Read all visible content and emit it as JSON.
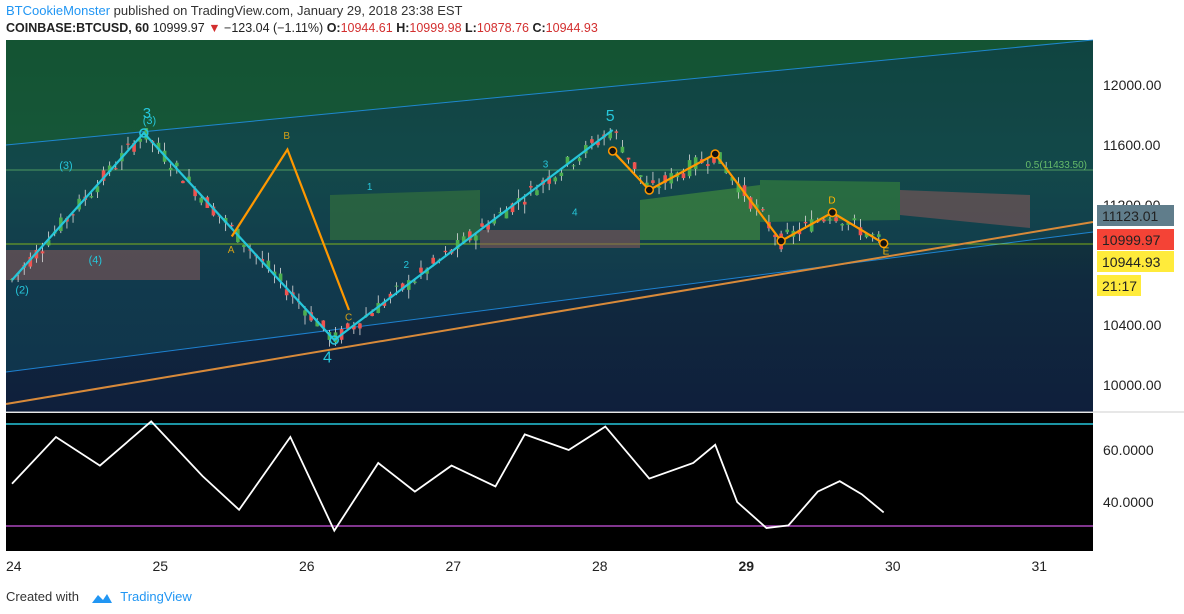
{
  "header": {
    "author": "BTCookieMonster",
    "published_text": "published on TradingView.com, January 29, 2018 23:38 EST",
    "symbol": "COINBASE:BTCUSD, 60",
    "last": "10999.97",
    "change": "−123.04 (−1.11%)",
    "o_label": "O:",
    "o_value": "10944.61",
    "h_label": "H:",
    "h_value": "10999.98",
    "l_label": "L:",
    "l_value": "10878.76",
    "c_label": "C:",
    "c_value": "10944.93"
  },
  "footer": {
    "created_with": "Created with",
    "brand": "TradingView"
  },
  "colors": {
    "up": "#4caf50",
    "down": "#ef5350",
    "wave": "#26c6da",
    "harmonic": "#ff9800",
    "trend": "#d88a3a",
    "rsi": "#ffffff"
  },
  "price_axis": {
    "ticks": [
      "12000.00",
      "11600.00",
      "11200.00",
      "10400.00",
      "10000.00"
    ],
    "badges": [
      {
        "value": "11123.01",
        "bg": "#607d8b",
        "fg": "#ffffff"
      },
      {
        "value": "10999.97",
        "bg": "#f44336",
        "fg": "#ffffff"
      },
      {
        "value": "10944.93",
        "bg": "#ffeb3b",
        "fg": "#000000"
      },
      {
        "value": "21:17",
        "bg": "#ffeb3b",
        "fg": "#000000"
      }
    ],
    "fib_label": "0.5(11433.50)"
  },
  "rsi_axis": {
    "ticks": [
      "60.0000",
      "40.0000"
    ]
  },
  "x_axis": {
    "ticks": [
      "24",
      "25",
      "26",
      "27",
      "28",
      "29",
      "30",
      "31"
    ]
  },
  "wave_labels": [
    "3",
    "(3)",
    "(3)",
    "(2)",
    "(4)",
    "4",
    "5",
    "1",
    "2",
    "3",
    "4",
    "A",
    "B",
    "C",
    "D",
    "E"
  ],
  "chart_data": [
    {
      "type": "line",
      "title": "COINBASE:BTCUSD, 60",
      "x_ticks": [
        "24",
        "25",
        "26",
        "27",
        "28",
        "29",
        "30",
        "31"
      ],
      "ylim": [
        9800,
        12250
      ],
      "y_ticks": [
        10000,
        10400,
        11200,
        11600,
        12000
      ],
      "series": [
        {
          "name": "",
          "x": [
            24.0,
            24.9,
            26.2,
            28.1,
            28.35,
            28.8,
            29.25,
            29.6,
            29.95
          ],
          "values": [
            10700,
            11680,
            10300,
            11700,
            11300,
            11540,
            10960,
            11150,
            10944
          ]
        }
      ],
      "close": 10944.93,
      "fib_level": 11433.5
    },
    {
      "type": "line",
      "title": "",
      "x_ticks": [
        "24",
        "25",
        "26",
        "27",
        "28",
        "29",
        "30",
        "31"
      ],
      "ylim": [
        25,
        73
      ],
      "y_ticks": [
        40,
        60
      ],
      "levels": [
        70,
        30
      ],
      "series": [
        {
          "name": "",
          "x": [
            24.0,
            24.3,
            24.6,
            24.95,
            25.3,
            25.55,
            25.9,
            26.2,
            26.5,
            26.75,
            27.0,
            27.3,
            27.5,
            27.8,
            28.05,
            28.35,
            28.65,
            28.8,
            28.95,
            29.15,
            29.3,
            29.5,
            29.65,
            29.8,
            29.95
          ],
          "values": [
            47,
            65,
            54,
            71,
            50,
            37,
            65,
            29,
            55,
            44,
            54,
            46,
            66,
            60,
            69,
            49,
            55,
            62,
            40,
            30,
            31,
            44,
            48,
            43,
            36
          ]
        }
      ]
    }
  ]
}
